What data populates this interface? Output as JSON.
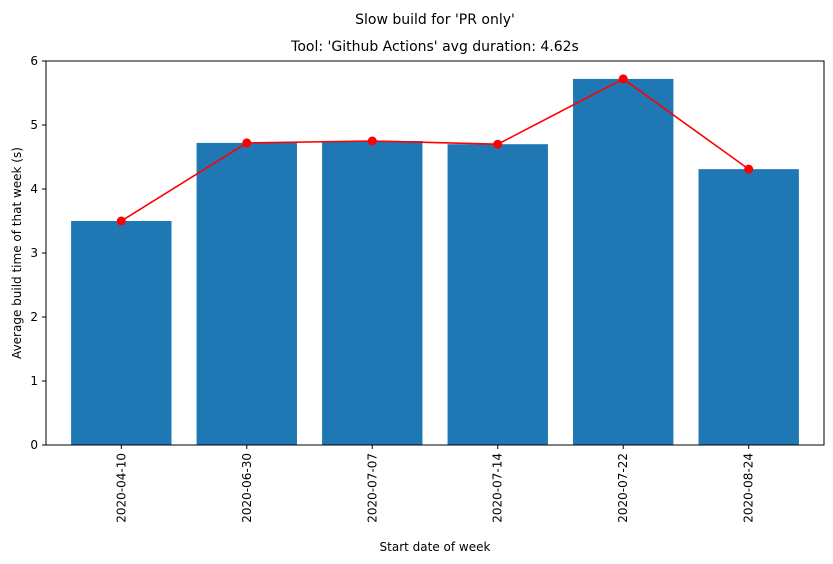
{
  "chart_data": {
    "type": "bar",
    "title": "Slow build for 'PR only'",
    "subtitle": "Tool: 'Github Actions' avg duration: 4.62s",
    "xlabel": "Start date of week",
    "ylabel": "Average build time of that week (s)",
    "categories": [
      "2020-04-10",
      "2020-06-30",
      "2020-07-07",
      "2020-07-14",
      "2020-07-22",
      "2020-08-24"
    ],
    "values": [
      3.5,
      4.72,
      4.75,
      4.7,
      5.72,
      4.31
    ],
    "line_values": [
      3.5,
      4.72,
      4.75,
      4.7,
      5.72,
      4.31
    ],
    "ylim": [
      0,
      6
    ],
    "yticks": [
      0,
      1,
      2,
      3,
      4,
      5,
      6
    ],
    "grid": false,
    "colors": {
      "bar": "#1f77b4",
      "line": "#ff0000"
    }
  }
}
